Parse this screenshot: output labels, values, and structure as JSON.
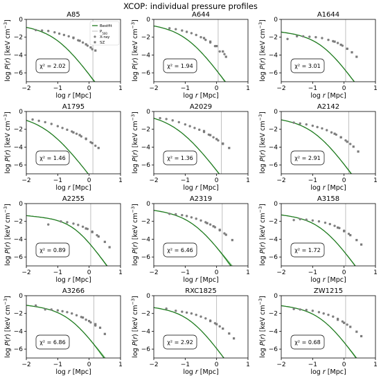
{
  "figure_title": "XCOP: individual pressure profiles",
  "axis": {
    "xlabel": "log r [Mpc]",
    "ylabel": "log P(r) [keV cm^-3]"
  },
  "legend": {
    "placement": "top-right of first panel",
    "items": [
      "Bestfit",
      "P500",
      "X-ray",
      "SZ"
    ]
  },
  "colors": {
    "line": "#1e7a1e",
    "band": "#8fce8f",
    "xray": "#808080",
    "sz": "#7a7a7a",
    "vline": "#b0b0b0",
    "axes": "#000000"
  },
  "chart_data": [
    {
      "type": "line",
      "title": "A85",
      "chi2_label": "χ² = 2.02",
      "xlim": [
        -2,
        1
      ],
      "ylim": [
        -7,
        0
      ],
      "xticks": [
        -2,
        -1,
        0,
        1
      ],
      "yticks": [
        -6,
        -4,
        -2,
        0
      ],
      "r500_logr": 0.12,
      "model": {
        "P0": -1.0,
        "rc": 0.1,
        "a": 1.0,
        "b": 5.0,
        "band_width": 0.8
      },
      "xray_points": [
        [
          -1.7,
          -1.2
        ],
        [
          -1.5,
          -1.25
        ],
        [
          -1.3,
          -1.3
        ],
        [
          -1.1,
          -1.45
        ],
        [
          -0.95,
          -1.6
        ],
        [
          -0.8,
          -1.75
        ],
        [
          -0.65,
          -1.9
        ],
        [
          -0.5,
          -2.1
        ],
        [
          -0.35,
          -2.35
        ],
        [
          -0.2,
          -2.6
        ],
        [
          -0.05,
          -2.95
        ],
        [
          0.1,
          -3.35
        ]
      ],
      "sz_points": [
        [
          -0.5,
          -2.05
        ],
        [
          -0.3,
          -2.4
        ],
        [
          -0.1,
          -2.8
        ],
        [
          0.05,
          -3.15
        ],
        [
          0.2,
          -3.5
        ]
      ]
    },
    {
      "type": "line",
      "title": "A644",
      "chi2_label": "χ² = 1.94",
      "xlim": [
        -2,
        1
      ],
      "ylim": [
        -7,
        0
      ],
      "xticks": [
        -2,
        -1,
        0,
        1
      ],
      "yticks": [
        -6,
        -4,
        -2,
        0
      ],
      "r500_logr": 0.05,
      "model": {
        "P0": -0.9,
        "rc": 0.12,
        "a": 1.0,
        "b": 5.0,
        "band_width": 0.5
      },
      "xray_points": [
        [
          -1.5,
          -1.0
        ],
        [
          -1.3,
          -1.1
        ],
        [
          -1.1,
          -1.25
        ],
        [
          -0.95,
          -1.4
        ],
        [
          -0.8,
          -1.55
        ],
        [
          -0.65,
          -1.75
        ],
        [
          -0.5,
          -2.0
        ],
        [
          -0.35,
          -2.3
        ],
        [
          -0.2,
          -2.6
        ],
        [
          -0.05,
          -3.0
        ],
        [
          0.1,
          -3.6
        ],
        [
          0.25,
          -3.9
        ]
      ],
      "sz_points": [
        [
          -0.4,
          -2.1
        ],
        [
          -0.2,
          -2.5
        ],
        [
          0.0,
          -3.0
        ],
        [
          0.2,
          -3.6
        ],
        [
          0.3,
          -4.2
        ]
      ]
    },
    {
      "type": "line",
      "title": "A1644",
      "chi2_label": "χ² = 3.01",
      "xlim": [
        -2,
        1
      ],
      "ylim": [
        -7,
        0
      ],
      "xticks": [
        -2,
        -1,
        0,
        1
      ],
      "yticks": [
        -6,
        -4,
        -2,
        0
      ],
      "r500_logr": 0.05,
      "model": {
        "P0": -1.75,
        "rc": 0.2,
        "a": 1.1,
        "b": 5.0,
        "band_width": 0.3
      },
      "xray_points": [
        [
          -1.8,
          -2.2
        ],
        [
          -1.5,
          -1.9
        ],
        [
          -1.3,
          -1.9
        ],
        [
          -1.1,
          -1.95
        ],
        [
          -0.9,
          -2.0
        ],
        [
          -0.7,
          -2.1
        ],
        [
          -0.5,
          -2.3
        ],
        [
          -0.35,
          -2.45
        ],
        [
          -0.2,
          -2.65
        ],
        [
          -0.05,
          -2.95
        ],
        [
          0.1,
          -3.3
        ]
      ],
      "sz_points": [
        [
          -0.3,
          -2.5
        ],
        [
          -0.1,
          -2.85
        ],
        [
          0.1,
          -3.3
        ],
        [
          0.25,
          -3.7
        ],
        [
          0.4,
          -4.2
        ]
      ]
    },
    {
      "type": "line",
      "title": "A1795",
      "chi2_label": "χ² = 1.46",
      "xlim": [
        -2,
        1
      ],
      "ylim": [
        -7,
        0
      ],
      "xticks": [
        -2,
        -1,
        0,
        1
      ],
      "yticks": [
        -6,
        -4,
        -2,
        0
      ],
      "r500_logr": 0.12,
      "model": {
        "P0": -0.75,
        "rc": 0.05,
        "a": 0.9,
        "b": 4.8,
        "band_width": 0.8
      },
      "xray_points": [
        [
          -1.8,
          -0.9
        ],
        [
          -1.6,
          -1.05
        ],
        [
          -1.4,
          -1.2
        ],
        [
          -1.2,
          -1.4
        ],
        [
          -1.0,
          -1.65
        ],
        [
          -0.85,
          -1.85
        ],
        [
          -0.7,
          -2.05
        ],
        [
          -0.55,
          -2.25
        ],
        [
          -0.4,
          -2.5
        ],
        [
          -0.25,
          -2.8
        ],
        [
          -0.1,
          -3.1
        ],
        [
          0.05,
          -3.45
        ],
        [
          0.2,
          -3.85
        ]
      ],
      "sz_points": [
        [
          -0.5,
          -2.35
        ],
        [
          -0.3,
          -2.65
        ],
        [
          -0.1,
          -3.05
        ],
        [
          0.1,
          -3.55
        ],
        [
          0.3,
          -4.1
        ]
      ]
    },
    {
      "type": "line",
      "title": "A2029",
      "chi2_label": "χ² = 1.36",
      "xlim": [
        -2,
        1
      ],
      "ylim": [
        -7,
        0
      ],
      "xticks": [
        -2,
        -1,
        0,
        1
      ],
      "yticks": [
        -6,
        -4,
        -2,
        0
      ],
      "r500_logr": 0.15,
      "model": {
        "P0": -0.6,
        "rc": 0.06,
        "a": 0.9,
        "b": 4.8,
        "band_width": 0.7
      },
      "xray_points": [
        [
          -1.8,
          -0.75
        ],
        [
          -1.6,
          -0.85
        ],
        [
          -1.4,
          -1.0
        ],
        [
          -1.2,
          -1.2
        ],
        [
          -1.0,
          -1.45
        ],
        [
          -0.85,
          -1.65
        ],
        [
          -0.7,
          -1.85
        ],
        [
          -0.55,
          -2.05
        ],
        [
          -0.4,
          -2.3
        ],
        [
          -0.25,
          -2.6
        ],
        [
          -0.1,
          -2.9
        ],
        [
          0.05,
          -3.25
        ],
        [
          0.2,
          -3.65
        ]
      ],
      "sz_points": [
        [
          -0.4,
          -2.2
        ],
        [
          -0.2,
          -2.65
        ],
        [
          0.0,
          -3.1
        ],
        [
          0.2,
          -3.6
        ],
        [
          0.4,
          -4.1
        ]
      ]
    },
    {
      "type": "line",
      "title": "A2142",
      "chi2_label": "χ² = 2.91",
      "xlim": [
        -2,
        1
      ],
      "ylim": [
        -7,
        0
      ],
      "xticks": [
        -2,
        -1,
        0,
        1
      ],
      "yticks": [
        -6,
        -4,
        -2,
        0
      ],
      "r500_logr": 0.15,
      "model": {
        "P0": -1.1,
        "rc": 0.12,
        "a": 1.0,
        "b": 5.0,
        "band_width": 0.5
      },
      "xray_points": [
        [
          -1.6,
          -1.25
        ],
        [
          -1.4,
          -1.35
        ],
        [
          -1.2,
          -1.45
        ],
        [
          -1.0,
          -1.6
        ],
        [
          -0.85,
          -1.75
        ],
        [
          -0.7,
          -1.9
        ],
        [
          -0.55,
          -2.1
        ],
        [
          -0.4,
          -2.35
        ],
        [
          -0.25,
          -2.6
        ],
        [
          -0.1,
          -2.9
        ],
        [
          0.05,
          -3.25
        ],
        [
          0.2,
          -3.65
        ]
      ],
      "sz_points": [
        [
          -0.3,
          -2.5
        ],
        [
          -0.1,
          -2.9
        ],
        [
          0.1,
          -3.4
        ],
        [
          0.3,
          -3.95
        ],
        [
          0.45,
          -4.5
        ]
      ]
    },
    {
      "type": "line",
      "title": "A2255",
      "chi2_label": "χ² = 0.89",
      "xlim": [
        -2,
        1
      ],
      "ylim": [
        -7,
        0
      ],
      "xticks": [
        -2,
        -1,
        0,
        1
      ],
      "yticks": [
        -6,
        -4,
        -2,
        0
      ],
      "r500_logr": 0.05,
      "model": {
        "P0": -1.8,
        "rc": 0.35,
        "a": 1.3,
        "b": 5.0,
        "band_width": 0.2
      },
      "xray_points": [
        [
          -1.3,
          -2.35
        ],
        [
          -0.9,
          -2.0
        ],
        [
          -0.7,
          -2.1
        ],
        [
          -0.5,
          -2.25
        ],
        [
          -0.35,
          -2.4
        ],
        [
          -0.2,
          -2.6
        ],
        [
          -0.05,
          -2.85
        ],
        [
          0.1,
          -3.15
        ],
        [
          0.25,
          -3.55
        ]
      ],
      "sz_points": [
        [
          -0.1,
          -2.8
        ],
        [
          0.1,
          -3.2
        ],
        [
          0.3,
          -3.7
        ],
        [
          0.5,
          -4.3
        ],
        [
          0.65,
          -4.9
        ]
      ]
    },
    {
      "type": "line",
      "title": "A2319",
      "chi2_label": "χ² = 6.46",
      "xlim": [
        -2,
        1
      ],
      "ylim": [
        -7,
        0
      ],
      "xticks": [
        -2,
        -1,
        0,
        1
      ],
      "yticks": [
        -6,
        -4,
        -2,
        0
      ],
      "r500_logr": 0.18,
      "model": {
        "P0": -1.05,
        "rc": 0.2,
        "a": 1.0,
        "b": 5.0,
        "band_width": 0.6
      },
      "xray_points": [
        [
          -1.5,
          -1.15
        ],
        [
          -1.3,
          -1.2
        ],
        [
          -1.1,
          -1.3
        ],
        [
          -0.95,
          -1.4
        ],
        [
          -0.8,
          -1.55
        ],
        [
          -0.65,
          -1.7
        ],
        [
          -0.5,
          -1.9
        ],
        [
          -0.35,
          -2.1
        ],
        [
          -0.2,
          -2.35
        ],
        [
          -0.05,
          -2.65
        ],
        [
          0.1,
          -3.0
        ],
        [
          0.25,
          -3.35
        ]
      ],
      "sz_points": [
        [
          -0.3,
          -2.2
        ],
        [
          -0.1,
          -2.55
        ],
        [
          0.1,
          -2.95
        ],
        [
          0.3,
          -3.5
        ],
        [
          0.5,
          -4.1
        ]
      ]
    },
    {
      "type": "line",
      "title": "A3158",
      "chi2_label": "χ² = 1.72",
      "xlim": [
        -2,
        1
      ],
      "ylim": [
        -7,
        0
      ],
      "xticks": [
        -2,
        -1,
        0,
        1
      ],
      "yticks": [
        -6,
        -4,
        -2,
        0
      ],
      "r500_logr": 0.05,
      "model": {
        "P0": -1.6,
        "rc": 0.2,
        "a": 1.1,
        "b": 5.0,
        "band_width": 0.3
      },
      "xray_points": [
        [
          -1.6,
          -1.85
        ],
        [
          -1.4,
          -1.75
        ],
        [
          -1.2,
          -1.8
        ],
        [
          -1.0,
          -1.9
        ],
        [
          -0.8,
          -2.0
        ],
        [
          -0.6,
          -2.15
        ],
        [
          -0.45,
          -2.3
        ],
        [
          -0.3,
          -2.5
        ],
        [
          -0.15,
          -2.75
        ],
        [
          0.0,
          -3.05
        ],
        [
          0.15,
          -3.4
        ]
      ],
      "sz_points": [
        [
          -0.2,
          -2.7
        ],
        [
          0.0,
          -3.1
        ],
        [
          0.2,
          -3.55
        ],
        [
          0.4,
          -4.1
        ],
        [
          0.55,
          -4.6
        ]
      ]
    },
    {
      "type": "line",
      "title": "A3266",
      "chi2_label": "χ² = 6.86",
      "xlim": [
        -2,
        1
      ],
      "ylim": [
        -7,
        0
      ],
      "xticks": [
        -2,
        -1,
        0,
        1
      ],
      "yticks": [
        -6,
        -4,
        -2,
        0
      ],
      "r500_logr": 0.15,
      "model": {
        "P0": -1.45,
        "rc": 0.25,
        "a": 1.1,
        "b": 5.0,
        "band_width": 0.5
      },
      "xray_points": [
        [
          -1.7,
          -1.1
        ],
        [
          -1.4,
          -1.55
        ],
        [
          -1.2,
          -1.55
        ],
        [
          -1.0,
          -1.65
        ],
        [
          -0.85,
          -1.75
        ],
        [
          -0.7,
          -1.85
        ],
        [
          -0.55,
          -2.0
        ],
        [
          -0.4,
          -2.2
        ],
        [
          -0.25,
          -2.4
        ],
        [
          -0.1,
          -2.7
        ],
        [
          0.05,
          -3.0
        ],
        [
          0.2,
          -3.35
        ]
      ],
      "sz_points": [
        [
          -0.2,
          -2.45
        ],
        [
          0.0,
          -2.85
        ],
        [
          0.2,
          -3.2
        ],
        [
          0.35,
          -3.6
        ],
        [
          0.5,
          -4.3
        ]
      ]
    },
    {
      "type": "line",
      "title": "RXC1825",
      "chi2_label": "χ² = 2.92",
      "xlim": [
        -2,
        1
      ],
      "ylim": [
        -7,
        0
      ],
      "xticks": [
        -2,
        -1,
        0,
        1
      ],
      "yticks": [
        -6,
        -4,
        -2,
        0
      ],
      "r500_logr": 0.0,
      "model": {
        "P0": -1.6,
        "rc": 0.15,
        "a": 1.1,
        "b": 5.0,
        "band_width": 0.3
      },
      "xray_points": [
        [
          -1.6,
          -1.45
        ],
        [
          -1.3,
          -1.7
        ],
        [
          -1.1,
          -1.8
        ],
        [
          -0.95,
          -1.9
        ],
        [
          -0.8,
          -2.0
        ],
        [
          -0.65,
          -2.15
        ],
        [
          -0.5,
          -2.35
        ],
        [
          -0.35,
          -2.55
        ],
        [
          -0.2,
          -2.8
        ],
        [
          -0.05,
          -3.1
        ],
        [
          0.1,
          -3.45
        ]
      ],
      "sz_points": [
        [
          -0.2,
          -2.85
        ],
        [
          0.0,
          -3.2
        ],
        [
          0.2,
          -3.7
        ],
        [
          0.4,
          -4.25
        ],
        [
          0.55,
          -4.8
        ]
      ]
    },
    {
      "type": "line",
      "title": "ZW1215",
      "chi2_label": "χ² = 0.68",
      "xlim": [
        -2,
        1
      ],
      "ylim": [
        -7,
        0
      ],
      "xticks": [
        -2,
        -1,
        0,
        1
      ],
      "yticks": [
        -6,
        -4,
        -2,
        0
      ],
      "r500_logr": 0.05,
      "model": {
        "P0": -1.45,
        "rc": 0.2,
        "a": 1.1,
        "b": 5.0,
        "band_width": 0.4
      },
      "xray_points": [
        [
          -1.6,
          -1.5
        ],
        [
          -1.4,
          -1.55
        ],
        [
          -1.2,
          -1.6
        ],
        [
          -1.0,
          -1.7
        ],
        [
          -0.8,
          -1.85
        ],
        [
          -0.65,
          -2.0
        ],
        [
          -0.5,
          -2.15
        ],
        [
          -0.35,
          -2.35
        ],
        [
          -0.2,
          -2.6
        ],
        [
          -0.05,
          -2.9
        ],
        [
          0.1,
          -3.25
        ]
      ],
      "sz_points": [
        [
          -0.2,
          -2.7
        ],
        [
          0.0,
          -3.05
        ],
        [
          0.2,
          -3.5
        ],
        [
          0.4,
          -4.05
        ],
        [
          0.55,
          -4.55
        ]
      ]
    }
  ]
}
